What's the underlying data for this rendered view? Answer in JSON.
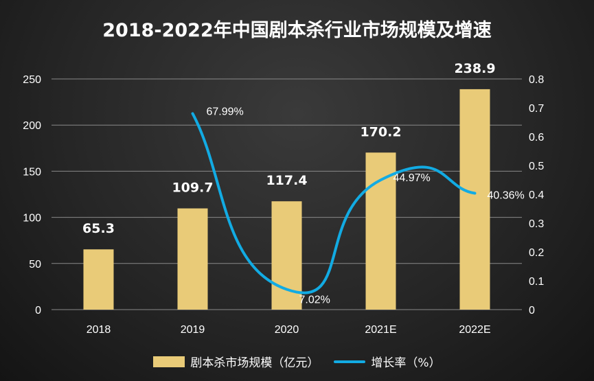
{
  "chart_data": {
    "type": "bar+line",
    "title": "2018-2022年中国剧本杀行业市场规模及增速",
    "categories": [
      "2018",
      "2019",
      "2020",
      "2021E",
      "2022E"
    ],
    "series": [
      {
        "name": "剧本杀市场规模（亿元）",
        "type": "bar",
        "axis": "left",
        "values": [
          65.3,
          109.7,
          117.4,
          170.2,
          238.9
        ],
        "labels": [
          "65.3",
          "109.7",
          "117.4",
          "170.2",
          "238.9"
        ],
        "color": "#E9CB78"
      },
      {
        "name": "增长率（%）",
        "type": "line",
        "axis": "right",
        "values": [
          null,
          0.6799,
          0.0702,
          0.4497,
          0.4036
        ],
        "labels": [
          "",
          "67.99%",
          "7.02%",
          "44.97%",
          "40.36%"
        ],
        "color": "#12ABE3"
      }
    ],
    "left_axis": {
      "range": [
        0,
        250
      ],
      "ticks": [
        "0",
        "50",
        "100",
        "150",
        "200",
        "250"
      ]
    },
    "right_axis": {
      "range": [
        0,
        0.8
      ],
      "ticks": [
        "0",
        "0.1",
        "0.2",
        "0.3",
        "0.4",
        "0.5",
        "0.6",
        "0.7",
        "0.8"
      ]
    },
    "grid": true,
    "legend": "bottom"
  }
}
